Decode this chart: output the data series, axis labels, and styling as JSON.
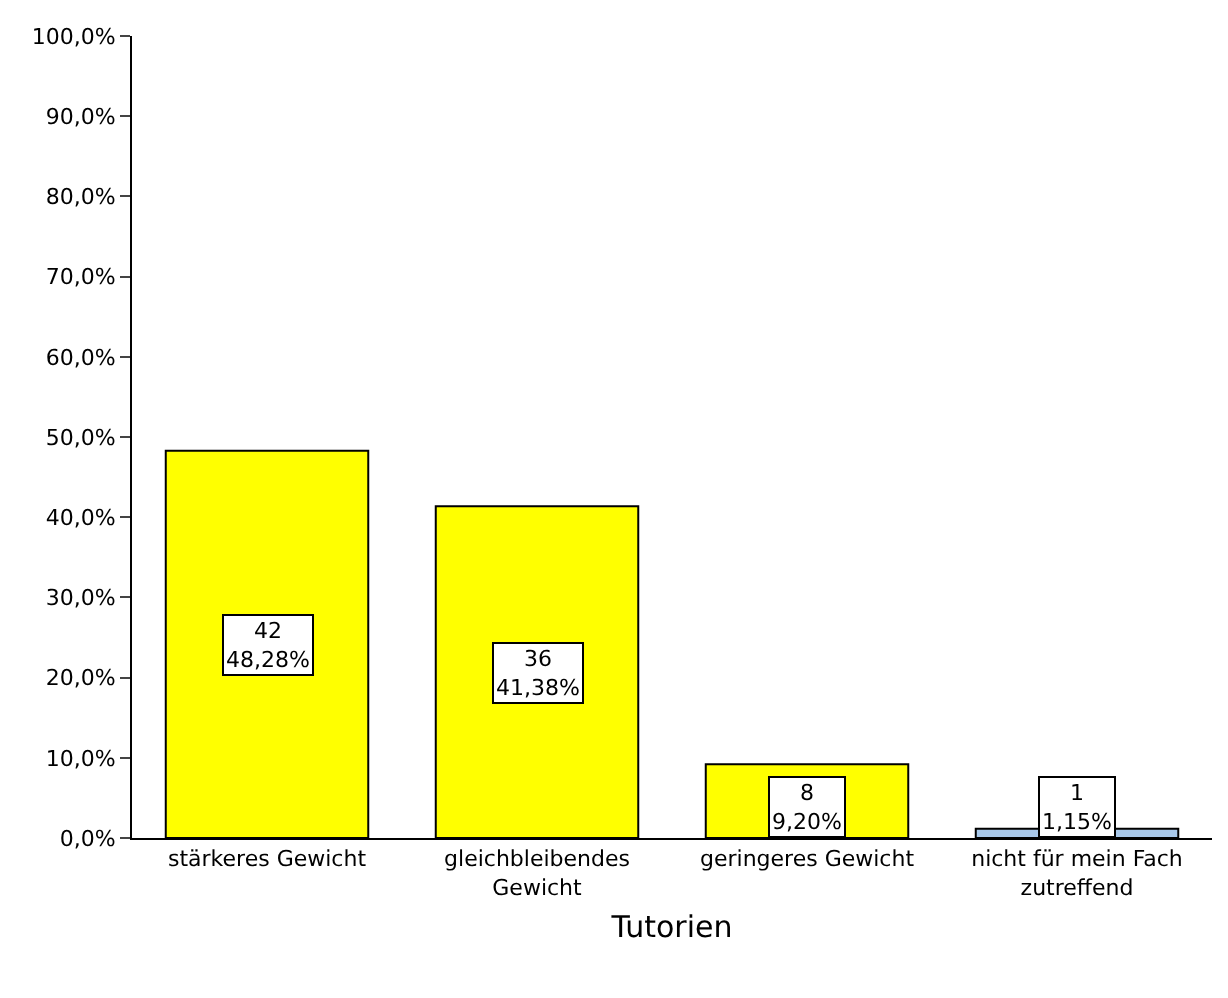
{
  "chart_data": {
    "type": "bar",
    "xlabel": "Tutorien",
    "categories": [
      "stärkeres Gewicht",
      "gleichbleibendes\nGewicht",
      "geringeres Gewicht",
      "nicht für mein Fach\nzutreffend"
    ],
    "values": [
      48.28,
      41.38,
      9.2,
      1.15
    ],
    "colors": [
      "#ffff00",
      "#ffff00",
      "#ffff00",
      "#a8c8ea"
    ],
    "value_labels": [
      "42\n48,28%",
      "36\n41,38%",
      "8\n9,20%",
      "1\n1,15%"
    ],
    "ylim": [
      0,
      100
    ],
    "yticks": [
      {
        "value": 0,
        "label": "0,0%"
      },
      {
        "value": 10,
        "label": "10,0%"
      },
      {
        "value": 20,
        "label": "20,0%"
      },
      {
        "value": 30,
        "label": "30,0%"
      },
      {
        "value": 40,
        "label": "40,0%"
      },
      {
        "value": 50,
        "label": "50,0%"
      },
      {
        "value": 60,
        "label": "60,0%"
      },
      {
        "value": 70,
        "label": "70,0%"
      },
      {
        "value": 80,
        "label": "80,0%"
      },
      {
        "value": 90,
        "label": "90,0%"
      },
      {
        "value": 100,
        "label": "100,0%"
      }
    ],
    "grid": false,
    "legend": false
  }
}
